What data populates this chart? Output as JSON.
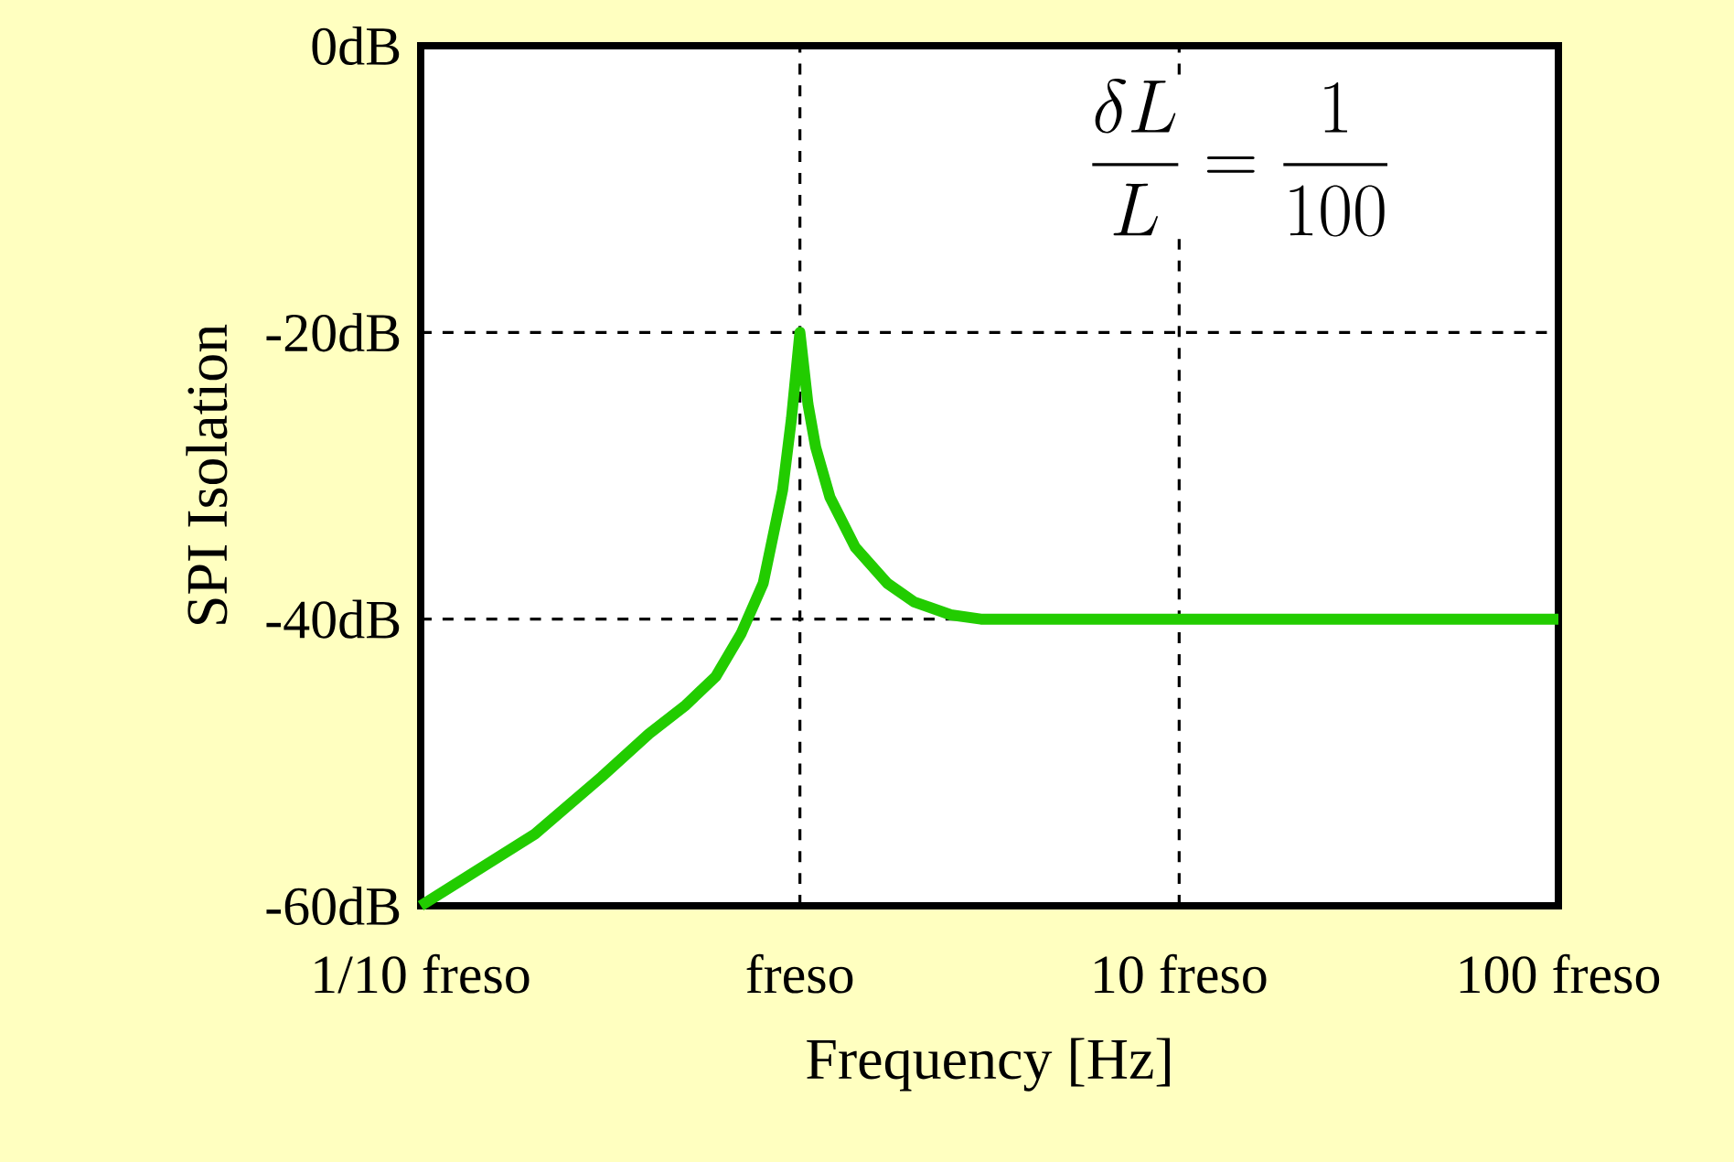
{
  "chart_data": {
    "type": "line",
    "xlabel": "Frequency [Hz]",
    "ylabel": "SPI Isolation",
    "log": "x",
    "grid": true,
    "marker": "none",
    "line_style": "solid",
    "xlim": [
      0.1,
      100
    ],
    "ylim": [
      -60,
      0
    ],
    "xticks": [
      {
        "value": 0.1,
        "label": "1/10 freso"
      },
      {
        "value": 1,
        "label": "freso"
      },
      {
        "value": 10,
        "label": "10 freso"
      },
      {
        "value": 100,
        "label": "100 freso"
      }
    ],
    "yticks": [
      {
        "value": -60,
        "label": "-60dB"
      },
      {
        "value": -40,
        "label": "-40dB"
      },
      {
        "value": -20,
        "label": "-20dB"
      },
      {
        "value": 0,
        "label": "0dB"
      }
    ],
    "annotations": [
      "\\frac{\\delta L}{L} = \\frac{1}{100}"
    ],
    "series": [
      {
        "color": "#22cc00",
        "x": [
          0.1,
          0.2,
          0.3,
          0.4,
          0.5,
          0.6,
          0.7,
          0.8,
          0.9,
          0.95,
          1.0,
          1.05,
          1.1,
          1.2,
          1.4,
          1.7,
          2,
          2.5,
          3,
          10,
          100
        ],
        "values": [
          -60,
          -55,
          -51,
          -48,
          -46,
          -44,
          -41,
          -37.5,
          -31,
          -26,
          -20,
          -25,
          -28,
          -31.5,
          -35,
          -37.5,
          -38.8,
          -39.7,
          -40,
          -40,
          -40
        ]
      }
    ]
  }
}
